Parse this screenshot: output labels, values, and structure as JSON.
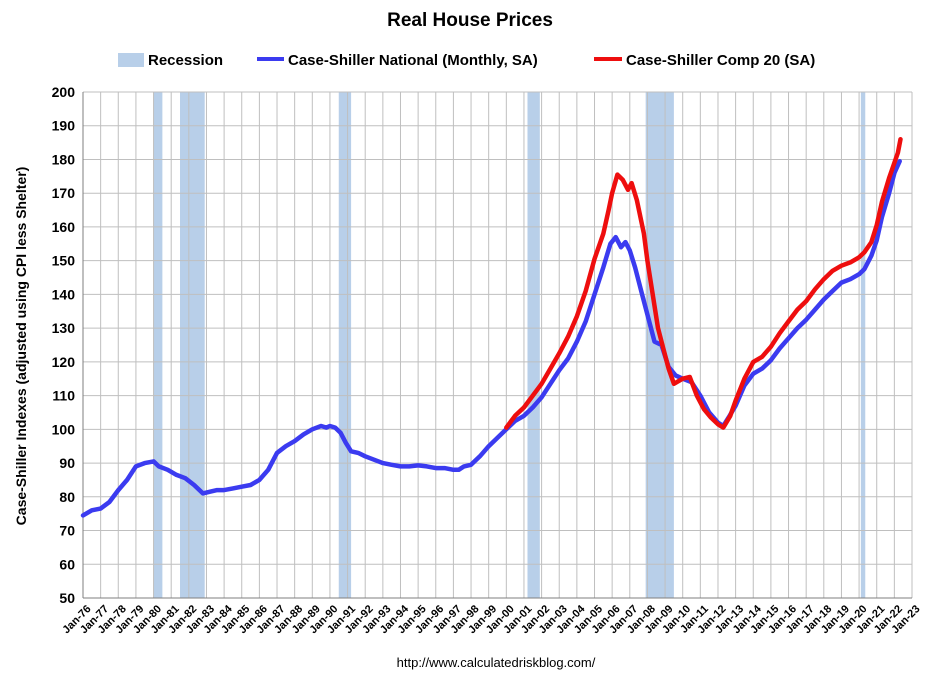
{
  "chart_data": {
    "type": "line",
    "title": "Real House Prices",
    "xlabel": "",
    "ylabel": "Case-Shiller Indexes (adjusted using CPI less Shelter)",
    "ylim": [
      50,
      200
    ],
    "y_ticks": [
      50,
      60,
      70,
      80,
      90,
      100,
      110,
      120,
      130,
      140,
      150,
      160,
      170,
      180,
      190,
      200
    ],
    "x_range": [
      1976,
      2023
    ],
    "x_tick_labels": [
      "Jan-76",
      "Jan-77",
      "Jan-78",
      "Jan-79",
      "Jan-80",
      "Jan-81",
      "Jan-82",
      "Jan-83",
      "Jan-84",
      "Jan-85",
      "Jan-86",
      "Jan-87",
      "Jan-88",
      "Jan-89",
      "Jan-90",
      "Jan-91",
      "Jan-92",
      "Jan-93",
      "Jan-94",
      "Jan-95",
      "Jan-96",
      "Jan-97",
      "Jan-98",
      "Jan-99",
      "Jan-00",
      "Jan-01",
      "Jan-02",
      "Jan-03",
      "Jan-04",
      "Jan-05",
      "Jan-06",
      "Jan-07",
      "Jan-08",
      "Jan-09",
      "Jan-10",
      "Jan-11",
      "Jan-12",
      "Jan-13",
      "Jan-14",
      "Jan-15",
      "Jan-16",
      "Jan-17",
      "Jan-18",
      "Jan-19",
      "Jan-20",
      "Jan-21",
      "Jan-22",
      "Jan-23"
    ],
    "grid": true,
    "legend_position": "top",
    "recessions": {
      "name": "Recession",
      "color": "#b8cfe9",
      "periods": [
        [
          1980.0,
          1980.5
        ],
        [
          1981.5,
          1982.9
        ],
        [
          1990.5,
          1991.2
        ],
        [
          2001.2,
          2001.9
        ],
        [
          2007.9,
          2009.5
        ],
        [
          2020.1,
          2020.35
        ]
      ]
    },
    "series": [
      {
        "name": "Case-Shiller National (Monthly, SA)",
        "color": "#3b3bf0",
        "points": [
          [
            1976.0,
            74.5
          ],
          [
            1976.5,
            76.0
          ],
          [
            1977.0,
            76.5
          ],
          [
            1977.5,
            78.5
          ],
          [
            1978.0,
            82.0
          ],
          [
            1978.5,
            85.0
          ],
          [
            1979.0,
            89.0
          ],
          [
            1979.5,
            90.0
          ],
          [
            1980.0,
            90.5
          ],
          [
            1980.3,
            89.0
          ],
          [
            1980.8,
            88.0
          ],
          [
            1981.3,
            86.5
          ],
          [
            1981.8,
            85.5
          ],
          [
            1982.3,
            83.5
          ],
          [
            1982.8,
            81.0
          ],
          [
            1983.2,
            81.5
          ],
          [
            1983.6,
            82.0
          ],
          [
            1984.0,
            82.0
          ],
          [
            1984.5,
            82.5
          ],
          [
            1985.0,
            83.0
          ],
          [
            1985.5,
            83.5
          ],
          [
            1986.0,
            85.0
          ],
          [
            1986.5,
            88.0
          ],
          [
            1987.0,
            93.0
          ],
          [
            1987.5,
            95.0
          ],
          [
            1988.0,
            96.5
          ],
          [
            1988.5,
            98.5
          ],
          [
            1989.0,
            100.0
          ],
          [
            1989.5,
            101.0
          ],
          [
            1989.8,
            100.5
          ],
          [
            1990.0,
            101.0
          ],
          [
            1990.3,
            100.5
          ],
          [
            1990.6,
            99.0
          ],
          [
            1990.9,
            96.0
          ],
          [
            1991.2,
            93.5
          ],
          [
            1991.6,
            93.0
          ],
          [
            1992.0,
            92.0
          ],
          [
            1992.5,
            91.0
          ],
          [
            1993.0,
            90.0
          ],
          [
            1993.5,
            89.5
          ],
          [
            1994.0,
            89.0
          ],
          [
            1994.5,
            89.0
          ],
          [
            1995.0,
            89.3
          ],
          [
            1995.5,
            89.0
          ],
          [
            1996.0,
            88.5
          ],
          [
            1996.5,
            88.5
          ],
          [
            1997.0,
            88.0
          ],
          [
            1997.3,
            88.0
          ],
          [
            1997.6,
            89.0
          ],
          [
            1998.0,
            89.5
          ],
          [
            1998.5,
            92.0
          ],
          [
            1999.0,
            95.0
          ],
          [
            1999.5,
            97.5
          ],
          [
            2000.0,
            100.0
          ],
          [
            2000.5,
            102.5
          ],
          [
            2001.0,
            104.0
          ],
          [
            2001.5,
            106.5
          ],
          [
            2002.0,
            109.5
          ],
          [
            2002.5,
            113.5
          ],
          [
            2003.0,
            117.5
          ],
          [
            2003.5,
            121.0
          ],
          [
            2004.0,
            126.0
          ],
          [
            2004.5,
            132.0
          ],
          [
            2005.0,
            140.0
          ],
          [
            2005.5,
            148.0
          ],
          [
            2005.9,
            155.0
          ],
          [
            2006.2,
            157.0
          ],
          [
            2006.5,
            154.0
          ],
          [
            2006.75,
            155.5
          ],
          [
            2007.0,
            153.0
          ],
          [
            2007.3,
            148.0
          ],
          [
            2007.7,
            140.0
          ],
          [
            2008.0,
            134.0
          ],
          [
            2008.4,
            126.0
          ],
          [
            2008.8,
            125.0
          ],
          [
            2009.2,
            118.5
          ],
          [
            2009.6,
            116.0
          ],
          [
            2010.0,
            115.0
          ],
          [
            2010.5,
            114.0
          ],
          [
            2011.0,
            110.0
          ],
          [
            2011.5,
            105.0
          ],
          [
            2012.0,
            102.0
          ],
          [
            2012.3,
            101.0
          ],
          [
            2012.6,
            103.5
          ],
          [
            2013.0,
            107.0
          ],
          [
            2013.5,
            113.0
          ],
          [
            2014.0,
            116.5
          ],
          [
            2014.5,
            118.0
          ],
          [
            2015.0,
            120.5
          ],
          [
            2015.5,
            124.0
          ],
          [
            2016.0,
            127.0
          ],
          [
            2016.5,
            130.0
          ],
          [
            2017.0,
            132.5
          ],
          [
            2017.5,
            135.5
          ],
          [
            2018.0,
            138.5
          ],
          [
            2018.5,
            141.0
          ],
          [
            2019.0,
            143.5
          ],
          [
            2019.5,
            144.5
          ],
          [
            2020.0,
            146.0
          ],
          [
            2020.3,
            147.5
          ],
          [
            2020.7,
            151.5
          ],
          [
            2021.0,
            156.0
          ],
          [
            2021.3,
            163.0
          ],
          [
            2021.7,
            170.0
          ],
          [
            2022.0,
            176.0
          ],
          [
            2022.3,
            179.5
          ]
        ]
      },
      {
        "name": "Case-Shiller Comp 20  (SA)",
        "color": "#ee0e0e",
        "points": [
          [
            2000.0,
            100.5
          ],
          [
            2000.5,
            104.0
          ],
          [
            2001.0,
            106.5
          ],
          [
            2001.5,
            110.0
          ],
          [
            2002.0,
            113.5
          ],
          [
            2002.5,
            118.0
          ],
          [
            2003.0,
            122.5
          ],
          [
            2003.5,
            127.5
          ],
          [
            2004.0,
            133.5
          ],
          [
            2004.5,
            141.0
          ],
          [
            2005.0,
            150.5
          ],
          [
            2005.5,
            158.0
          ],
          [
            2005.8,
            165.0
          ],
          [
            2006.0,
            170.0
          ],
          [
            2006.3,
            175.5
          ],
          [
            2006.6,
            174.0
          ],
          [
            2006.9,
            171.0
          ],
          [
            2007.1,
            173.0
          ],
          [
            2007.4,
            168.0
          ],
          [
            2007.8,
            158.0
          ],
          [
            2008.0,
            150.0
          ],
          [
            2008.3,
            140.0
          ],
          [
            2008.6,
            130.0
          ],
          [
            2008.9,
            124.0
          ],
          [
            2009.2,
            118.0
          ],
          [
            2009.5,
            113.5
          ],
          [
            2010.0,
            115.0
          ],
          [
            2010.4,
            115.5
          ],
          [
            2010.8,
            110.0
          ],
          [
            2011.2,
            106.0
          ],
          [
            2011.6,
            103.5
          ],
          [
            2012.0,
            101.5
          ],
          [
            2012.3,
            100.5
          ],
          [
            2012.7,
            104.0
          ],
          [
            2013.0,
            108.5
          ],
          [
            2013.5,
            115.0
          ],
          [
            2014.0,
            120.0
          ],
          [
            2014.5,
            121.5
          ],
          [
            2015.0,
            124.5
          ],
          [
            2015.5,
            128.5
          ],
          [
            2016.0,
            132.0
          ],
          [
            2016.5,
            135.5
          ],
          [
            2017.0,
            138.0
          ],
          [
            2017.5,
            141.5
          ],
          [
            2018.0,
            144.5
          ],
          [
            2018.5,
            147.0
          ],
          [
            2019.0,
            148.5
          ],
          [
            2019.5,
            149.5
          ],
          [
            2020.0,
            151.0
          ],
          [
            2020.3,
            152.5
          ],
          [
            2020.7,
            155.5
          ],
          [
            2021.0,
            160.5
          ],
          [
            2021.3,
            167.5
          ],
          [
            2021.7,
            174.5
          ],
          [
            2022.0,
            179.0
          ],
          [
            2022.2,
            182.0
          ],
          [
            2022.35,
            186.0
          ]
        ]
      }
    ],
    "footnote": "http://www.calculatedriskblog.com/"
  }
}
